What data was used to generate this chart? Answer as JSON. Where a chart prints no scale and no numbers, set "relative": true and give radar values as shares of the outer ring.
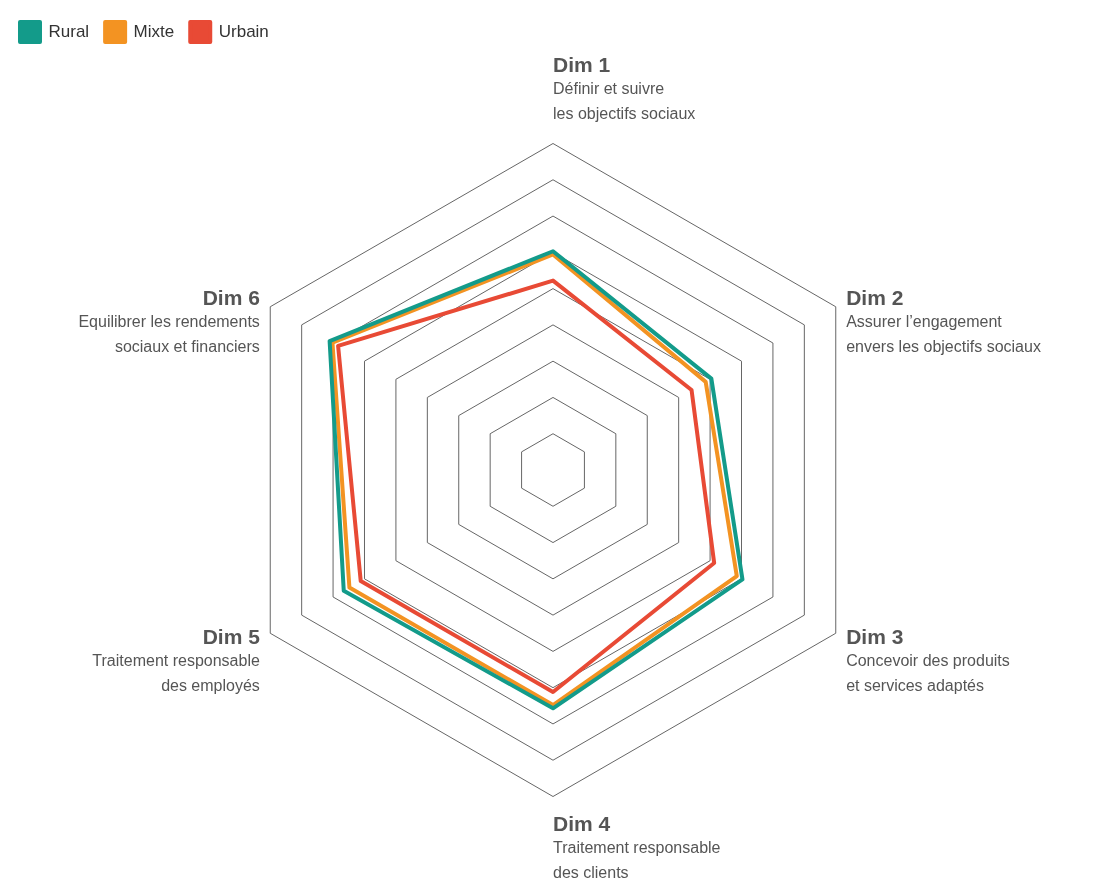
{
  "chart_data": {
    "type": "radar",
    "relative": true,
    "grid": true,
    "legend": "top left",
    "line_style": "solid",
    "marker": "none",
    "categories": [
      "Dim 1\nDéfinir et suivre\nles objectifs sociaux",
      "Dim 2\nAssurer l’engagement\nenvers les objectifs sociaux",
      "Dim 3\nConcevoir des produits\net services adaptés",
      "Dim 4\nTraitement responsable\ndes clients",
      "Dim 5\nTraitement responsable\ndes employés",
      "Dim 6\nEquilibrer les rendements\nsociaux et financiers"
    ],
    "series": [
      {
        "name": "Rural",
        "color": "#139b8a",
        "values": [
          0.67,
          0.56,
          0.67,
          0.73,
          0.74,
          0.79
        ]
      },
      {
        "name": "Mixte",
        "color": "#f39322",
        "values": [
          0.66,
          0.54,
          0.65,
          0.72,
          0.72,
          0.78
        ]
      },
      {
        "name": "Urbain",
        "color": "#e84a35",
        "values": [
          0.58,
          0.49,
          0.57,
          0.68,
          0.68,
          0.76
        ]
      }
    ]
  }
}
